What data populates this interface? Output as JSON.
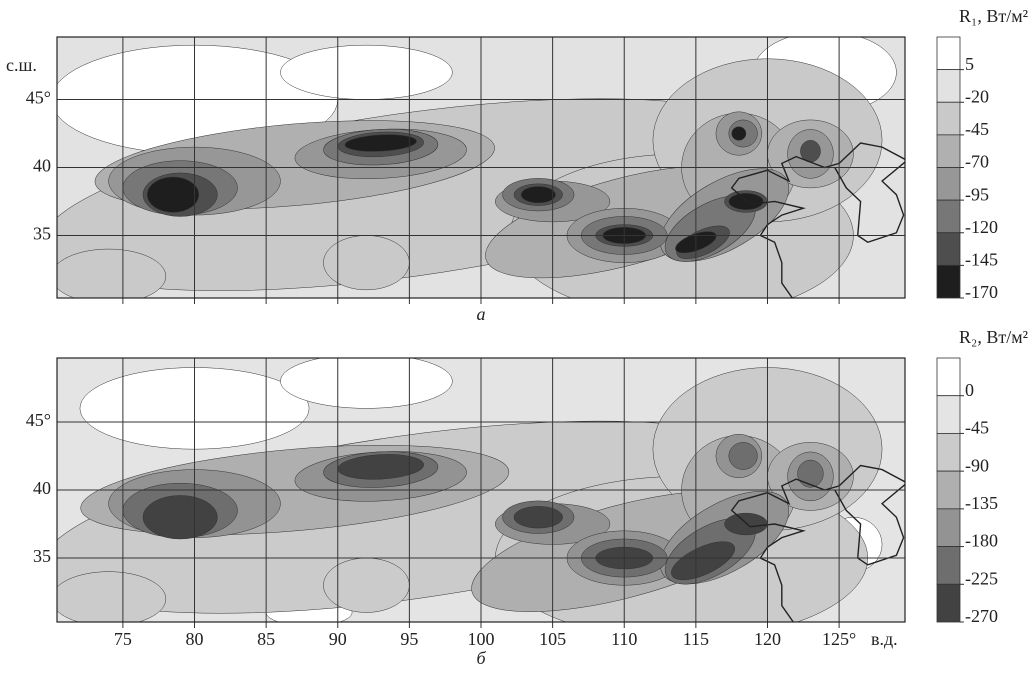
{
  "chart_data": [
    {
      "type": "contour",
      "label": "а",
      "lat_label": "с.ш.",
      "xlim": [
        70.4,
        129.6
      ],
      "ylim": [
        30.4,
        49.6
      ],
      "xticks": [
        75,
        80,
        85,
        90,
        95,
        100,
        105,
        110,
        115,
        120,
        125
      ],
      "x_tick_labels_shown": false,
      "yticks": [
        35,
        40,
        {
          "value": 45,
          "label": "45°"
        }
      ],
      "colorbar": {
        "title": "R₁, Вт/м²",
        "lim": [
          -170,
          30
        ],
        "ticks": [
          5,
          -20,
          -45,
          -70,
          -95,
          -120,
          -145,
          -170
        ],
        "colors": [
          "#ffffff",
          "#e2e2e2",
          "#c9c9c9",
          "#b0b0b0",
          "#979797",
          "#777777",
          "#4e4e4e",
          "#1e1e1e"
        ]
      }
    },
    {
      "type": "contour",
      "label": "б",
      "lon_label": "в.д.",
      "xlim": [
        70.4,
        129.6
      ],
      "ylim": [
        30.3,
        49.7
      ],
      "xticks": [
        75,
        80,
        85,
        90,
        95,
        100,
        105,
        110,
        115,
        {
          "value": 120,
          "label": "120"
        },
        {
          "value": 125,
          "label": "125°"
        }
      ],
      "x_tick_labels_shown": true,
      "yticks": [
        35,
        40,
        {
          "value": 45,
          "label": "45°"
        }
      ],
      "colorbar": {
        "title": "R₂, Вт/м²",
        "lim": [
          -270,
          45
        ],
        "ticks": [
          0,
          -45,
          -90,
          -135,
          -180,
          -225,
          -270
        ],
        "colors": [
          "#ffffff",
          "#e4e4e4",
          "#cbcbcb",
          "#afafaf",
          "#939393",
          "#6e6e6e",
          "#424242"
        ]
      }
    }
  ]
}
